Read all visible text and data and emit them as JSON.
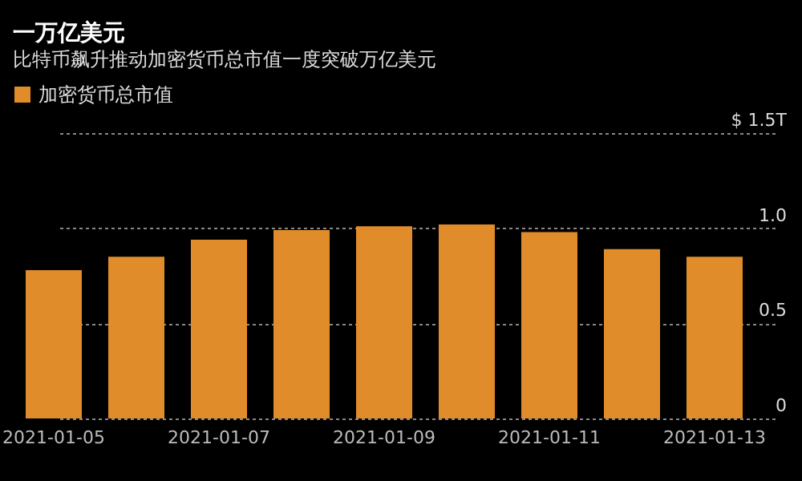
{
  "chart_data": {
    "type": "bar",
    "title": "一万亿美元",
    "subtitle": "比特币飙升推动加密货币总市值一度突破万亿美元",
    "categories": [
      "2021-01-05",
      null,
      "2021-01-07",
      null,
      "2021-01-09",
      null,
      "2021-01-11",
      null,
      "2021-01-13"
    ],
    "series": [
      {
        "name": "加密货币总市值",
        "color": "#e08c2b",
        "values": [
          0.78,
          0.85,
          0.94,
          0.99,
          1.01,
          1.02,
          0.98,
          0.89,
          0.85
        ]
      }
    ],
    "ylim": [
      0,
      1.5
    ],
    "yticks": [
      0,
      0.5,
      {
        "value": 1,
        "label": "1.0"
      },
      {
        "value": 1.5,
        "label": "$ 1.5T"
      }
    ],
    "grid": "y",
    "legend": "top left"
  }
}
